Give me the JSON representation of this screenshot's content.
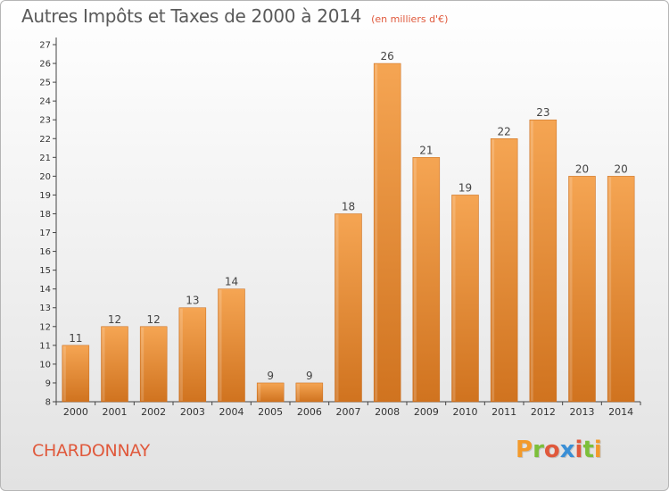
{
  "header": {
    "title": "Autres Impôts et Taxes de 2000 à 2014",
    "unit": "(en milliers d'€)"
  },
  "footer": {
    "commune": "CHARDONNAY",
    "logo_text": "Proxiti"
  },
  "colors": {
    "bar_light": "#f5a553",
    "bar_dark": "#d0731f",
    "logo": [
      "#f39a2b",
      "#7cbf3a",
      "#e0593c",
      "#3a8fd6",
      "#e0593c",
      "#7cbf3a",
      "#f39a2b"
    ]
  },
  "chart_data": {
    "type": "bar",
    "title": "Autres Impôts et Taxes de 2000 à 2014",
    "subtitle": "(en milliers d'€)",
    "categories": [
      "2000",
      "2001",
      "2002",
      "2003",
      "2004",
      "2005",
      "2006",
      "2007",
      "2008",
      "2009",
      "2010",
      "2011",
      "2012",
      "2013",
      "2014"
    ],
    "values": [
      11,
      12,
      12,
      13,
      14,
      9,
      9,
      18,
      26,
      21,
      19,
      22,
      23,
      20,
      20
    ],
    "ylim": [
      8,
      27
    ],
    "yticks": [
      8,
      9,
      10,
      11,
      12,
      13,
      14,
      15,
      16,
      17,
      18,
      19,
      20,
      21,
      22,
      23,
      24,
      25,
      26,
      27
    ],
    "grid": false,
    "xlabel": "",
    "ylabel": ""
  }
}
